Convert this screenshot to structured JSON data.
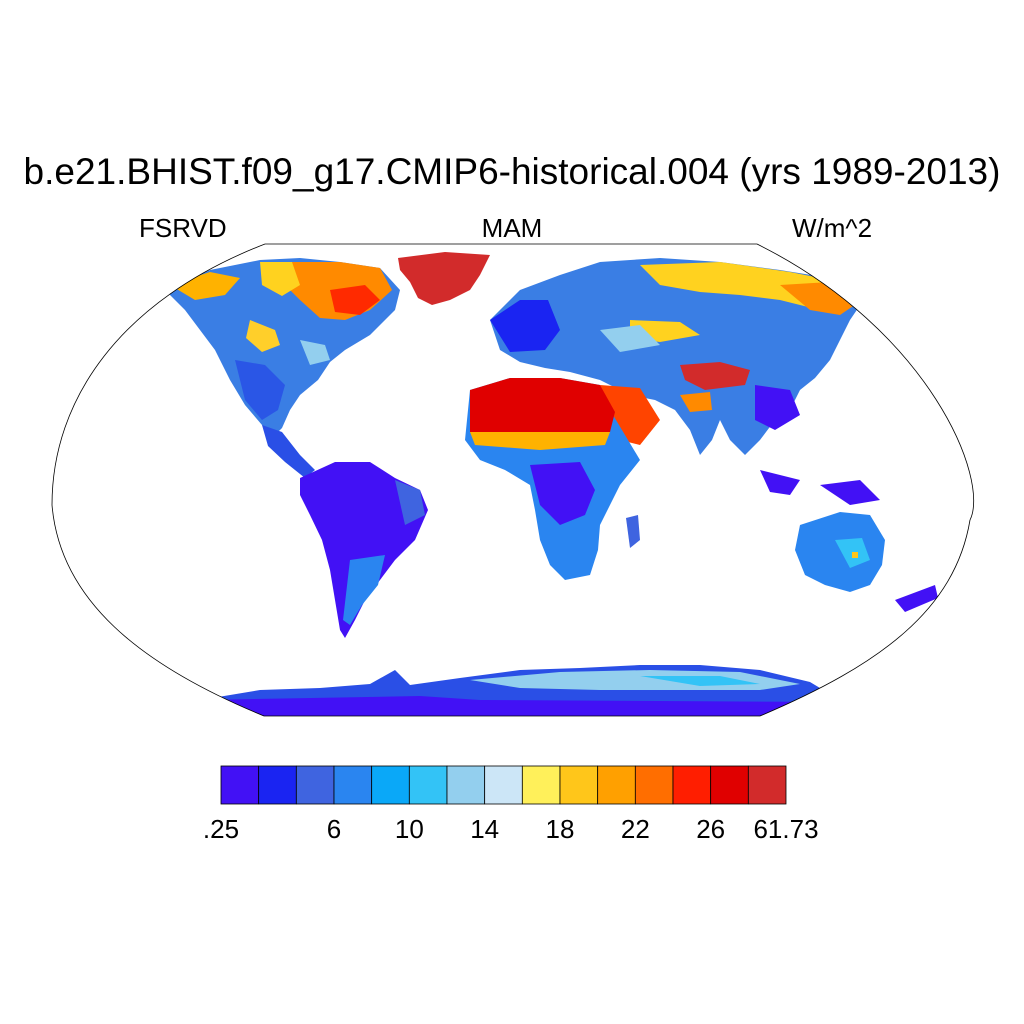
{
  "title": "b.e21.BHIST.f09_g17.CMIP6-historical.004 (yrs 1989-2013)",
  "variable": "FSRVD",
  "season": "MAM",
  "units": "W/m^2",
  "colorbar": {
    "colors": [
      "#4211f5",
      "#1a24f2",
      "#3f64e0",
      "#2a85f0",
      "#0aa8f8",
      "#33c3f6",
      "#93cfee",
      "#cce6f7",
      "#fff05a",
      "#ffc61a",
      "#ffa000",
      "#ff6e00",
      "#ff1e00",
      "#e00000",
      "#d22b2b"
    ],
    "labels": [
      ".25",
      "6",
      "10",
      "14",
      "18",
      "22",
      "26",
      "61.73"
    ]
  }
}
